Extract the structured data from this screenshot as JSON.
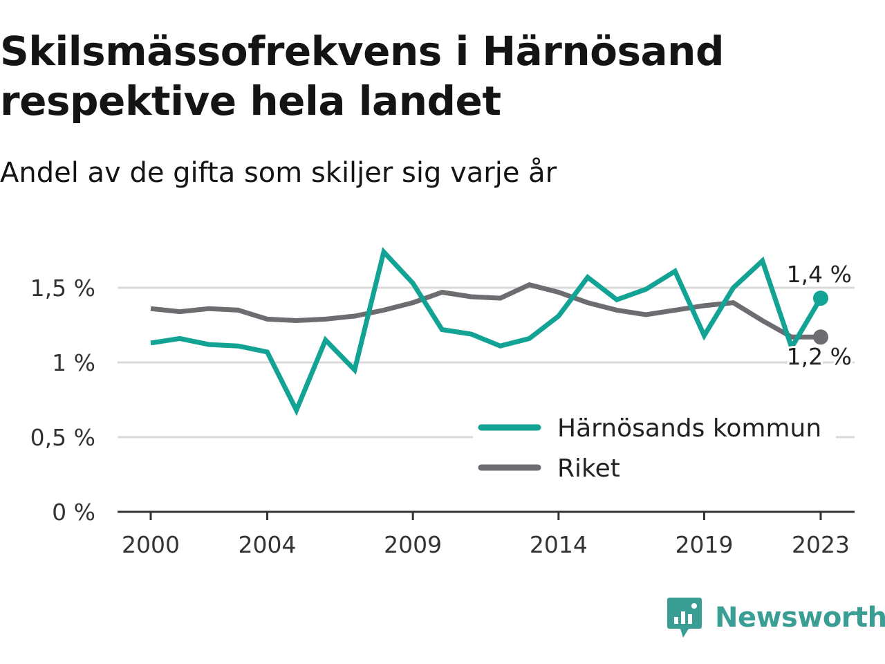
{
  "title": "Skilsmässofrekvens i Härnösand respektive hela landet",
  "subtitle": "Andel av de gifta som skiljer sig varje år",
  "brand": {
    "name": "Newsworthy",
    "icon": "newsworthy-logo-icon"
  },
  "colors": {
    "harnosand": "#12a395",
    "riket": "#6d6c70",
    "grid": "#d9d9d9",
    "axis": "#333333"
  },
  "chart_data": {
    "type": "line",
    "x": [
      2000,
      2001,
      2002,
      2003,
      2004,
      2005,
      2006,
      2007,
      2008,
      2009,
      2010,
      2011,
      2012,
      2013,
      2014,
      2015,
      2016,
      2017,
      2018,
      2019,
      2020,
      2021,
      2022,
      2023
    ],
    "x_ticks": [
      {
        "value": 2000,
        "label": "2000"
      },
      {
        "value": 2004,
        "label": "2004"
      },
      {
        "value": 2009,
        "label": "2009"
      },
      {
        "value": 2014,
        "label": "2014"
      },
      {
        "value": 2019,
        "label": "2019"
      },
      {
        "value": 2023,
        "label": "2023"
      }
    ],
    "y_ticks": [
      {
        "value": 0,
        "label": "0 %"
      },
      {
        "value": 0.5,
        "label": "0,5 %"
      },
      {
        "value": 1.0,
        "label": "1 %"
      },
      {
        "value": 1.5,
        "label": "1,5 %"
      }
    ],
    "ylim": [
      0,
      1.75
    ],
    "xlim": [
      2000,
      2023
    ],
    "grid": true,
    "legend_position": "bottom-right",
    "series": [
      {
        "key": "harnosand",
        "name": "Härnösands kommun",
        "color": "#12a395",
        "values": [
          1.13,
          1.16,
          1.12,
          1.11,
          1.07,
          0.68,
          1.15,
          0.95,
          1.74,
          1.53,
          1.22,
          1.19,
          1.11,
          1.16,
          1.31,
          1.57,
          1.42,
          1.49,
          1.61,
          1.18,
          1.5,
          1.68,
          1.1,
          1.43
        ],
        "end_label": "1,4 %"
      },
      {
        "key": "riket",
        "name": "Riket",
        "color": "#6d6c70",
        "values": [
          1.36,
          1.34,
          1.36,
          1.35,
          1.29,
          1.28,
          1.29,
          1.31,
          1.35,
          1.4,
          1.47,
          1.44,
          1.43,
          1.52,
          1.47,
          1.4,
          1.35,
          1.32,
          1.35,
          1.38,
          1.4,
          1.28,
          1.17,
          1.17
        ],
        "end_label": "1,2 %"
      }
    ]
  }
}
